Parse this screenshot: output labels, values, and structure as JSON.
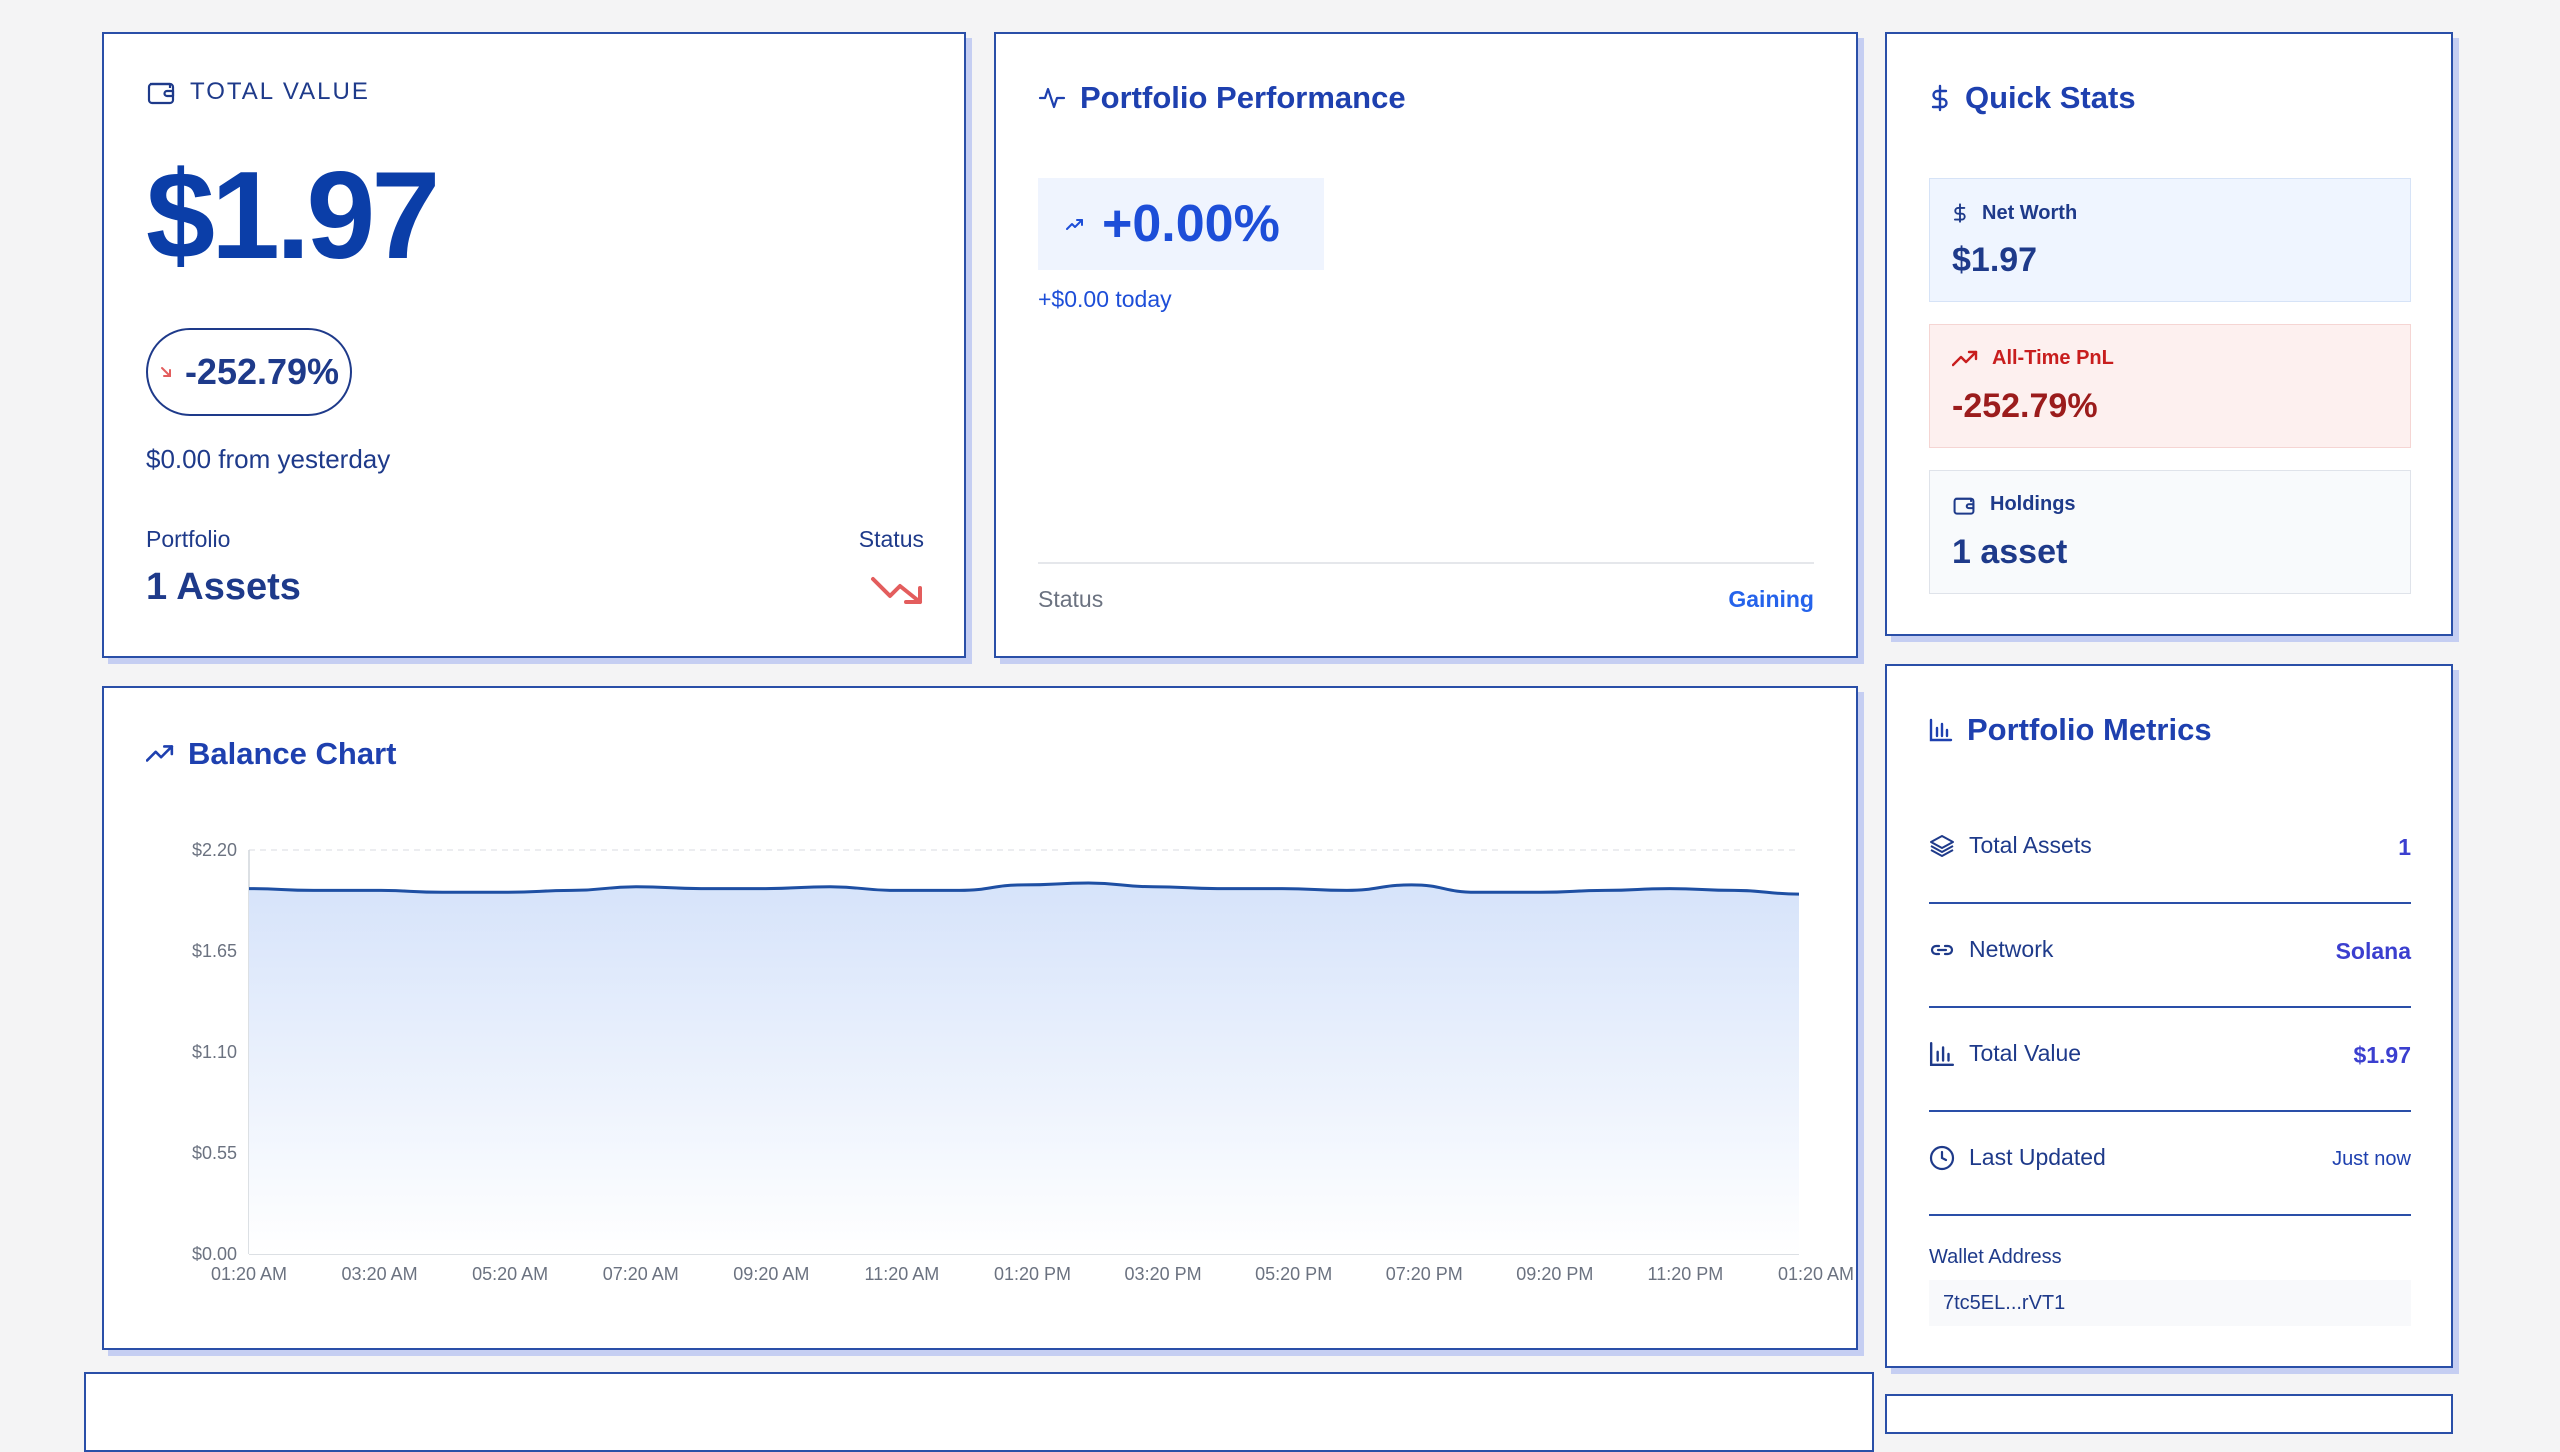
{
  "total_value": {
    "label": "TOTAL VALUE",
    "amount": "$1.97",
    "change_pct": "-252.79%",
    "change_text": "$0.00 from yesterday",
    "portfolio_label": "Portfolio",
    "assets": "1 Assets",
    "status_label": "Status"
  },
  "performance": {
    "title": "Portfolio Performance",
    "pct": "+0.00%",
    "today": "+$0.00 today",
    "status_label": "Status",
    "status_value": "Gaining"
  },
  "quick_stats": {
    "title": "Quick Stats",
    "net_worth": {
      "label": "Net Worth",
      "value": "$1.97"
    },
    "pnl": {
      "label": "All-Time PnL",
      "value": "-252.79%"
    },
    "holdings": {
      "label": "Holdings",
      "value": "1 asset"
    }
  },
  "balance_chart": {
    "title": "Balance Chart"
  },
  "chart_data": {
    "type": "area",
    "title": "Balance Chart",
    "xlabel": "",
    "ylabel": "",
    "ylim": [
      0,
      2.2
    ],
    "y_ticks": [
      "$0.00",
      "$0.55",
      "$1.10",
      "$1.65",
      "$2.20"
    ],
    "y_tick_values": [
      0,
      0.55,
      1.1,
      1.65,
      2.2
    ],
    "x_ticks": [
      "01:20 AM",
      "03:20 AM",
      "05:20 AM",
      "07:20 AM",
      "09:20 AM",
      "11:20 AM",
      "01:20 PM",
      "03:20 PM",
      "05:20 PM",
      "07:20 PM",
      "09:20 PM",
      "11:20 PM",
      "01:20 AM"
    ],
    "grid": true,
    "series": [
      {
        "values": [
          1.99,
          1.98,
          1.98,
          1.97,
          1.97,
          1.98,
          2.0,
          1.99,
          1.99,
          2.0,
          1.98,
          1.98,
          2.01,
          2.02,
          2.0,
          1.99,
          1.99,
          1.98,
          2.01,
          1.97,
          1.97,
          1.98,
          1.99,
          1.98,
          1.96
        ]
      }
    ]
  },
  "metrics": {
    "title": "Portfolio Metrics",
    "rows": [
      {
        "label": "Total Assets",
        "value": "1"
      },
      {
        "label": "Network",
        "value": "Solana"
      },
      {
        "label": "Total Value",
        "value": "$1.97"
      },
      {
        "label": "Last Updated",
        "value": "Just now"
      }
    ],
    "wallet_label": "Wallet Address",
    "wallet_value": "7tc5EL...rVT1"
  },
  "colors": {
    "accent": "#1e40af",
    "border": "#2a4fa8",
    "negative": "#e35d5d",
    "chart_line": "#1e4fa3",
    "chart_fill": "#dbe6fb"
  },
  "icons": {
    "total_value": "wallet-icon",
    "performance": "activity-icon",
    "quick_stats": "dollar-icon",
    "balance_chart": "trending-up-icon",
    "metrics": "bar-chart-icon"
  }
}
